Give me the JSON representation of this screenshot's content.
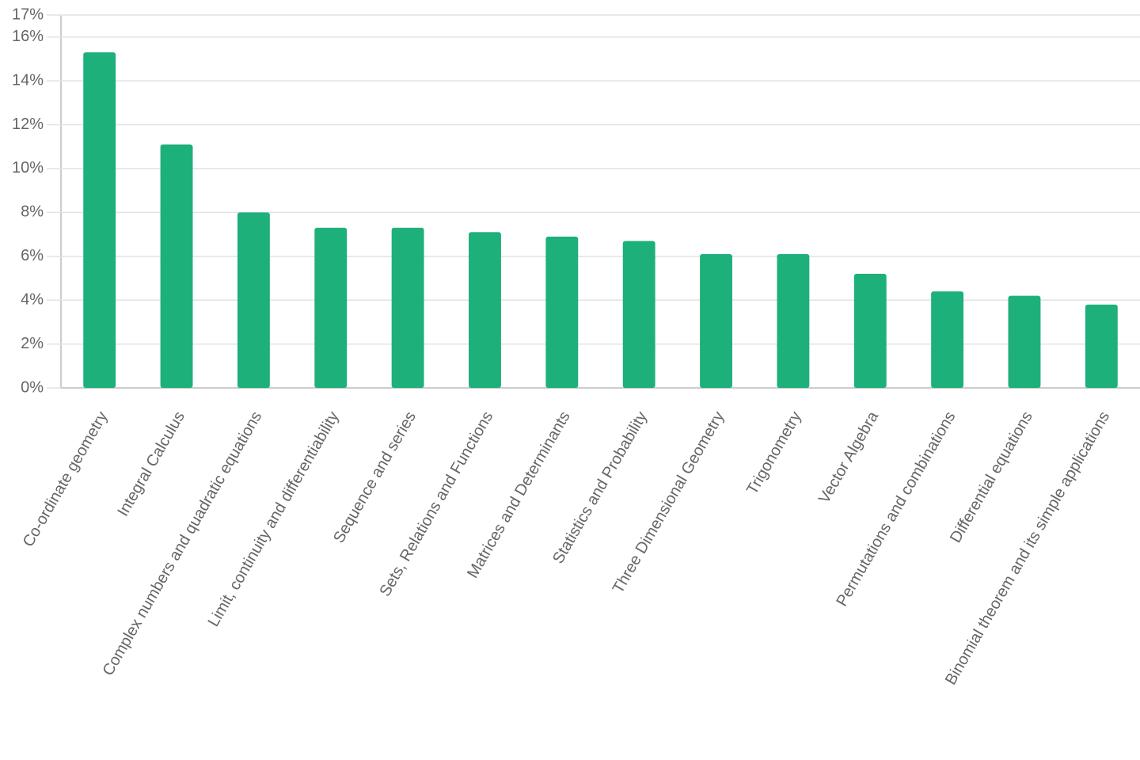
{
  "chart_data": {
    "type": "bar",
    "categories": [
      "Co-ordinate geometry",
      "Integral Calculus",
      "Complex numbers and quadratic equations",
      "Limit, continuity and differentiability",
      "Sequence and series",
      "Sets, Relations and Functions",
      "Matrices and Determinants",
      "Statistics and Probability",
      "Three Dimensional Geometry",
      "Trigonometry",
      "Vector Algebra",
      "Permutations and combinations",
      "Differential equations",
      "Binomial theorem and its simple applications"
    ],
    "values": [
      15.3,
      11.1,
      8.0,
      7.3,
      7.3,
      7.1,
      6.9,
      6.7,
      6.1,
      6.1,
      5.2,
      4.4,
      4.2,
      3.8
    ],
    "color": "#1eb07a",
    "ylim": [
      0,
      17
    ],
    "yticks": [
      {
        "value": 0,
        "label": "0%"
      },
      {
        "value": 2,
        "label": "2%"
      },
      {
        "value": 4,
        "label": "4%"
      },
      {
        "value": 6,
        "label": "6%"
      },
      {
        "value": 8,
        "label": "8%"
      },
      {
        "value": 10,
        "label": "10%"
      },
      {
        "value": 12,
        "label": "12%"
      },
      {
        "value": 14,
        "label": "14%"
      },
      {
        "value": 16,
        "label": "16%"
      },
      {
        "value": 17,
        "label": "17%"
      }
    ],
    "grid": true
  }
}
